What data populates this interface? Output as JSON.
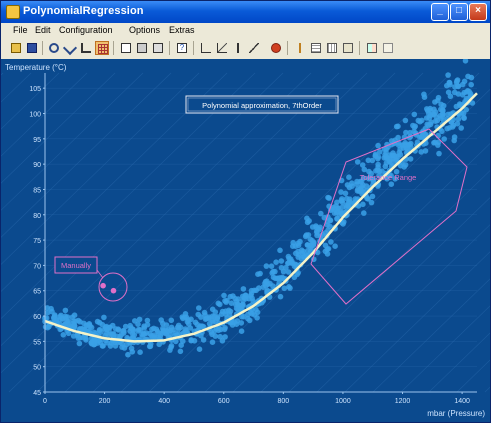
{
  "window": {
    "title": "PolynomialRegression"
  },
  "menu": [
    "File",
    "Edit",
    "Configuration",
    "Options",
    "Extras"
  ],
  "toolbar_icons": [
    "open-icon",
    "save-icon",
    "zoom-icon",
    "zoom-out-icon",
    "pan-icon",
    "grid-icon",
    "copy-icon",
    "print-icon",
    "export-icon",
    "help-icon",
    "axis-icon",
    "scale-icon",
    "marker-icon",
    "line-icon",
    "color-icon",
    "sep",
    "fit-icon",
    "table-icon",
    "data-icon",
    "settings-icon",
    "layout-icon"
  ],
  "chart_data": {
    "type": "scatter",
    "title": "Polynomial approximation, 7thOrder",
    "xlabel": "mbar (Pressure)",
    "ylabel": "Temperature (°C)",
    "xlim": [
      0,
      1450
    ],
    "ylim": [
      45,
      108
    ],
    "xticks": [
      0,
      200,
      400,
      600,
      800,
      1000,
      1200,
      1400
    ],
    "yticks": [
      45,
      50,
      55,
      60,
      65,
      70,
      75,
      80,
      85,
      90,
      95,
      100,
      105
    ],
    "annotations": [
      "Tolerance Range",
      "Manually"
    ],
    "fit_curve": {
      "x": [
        0,
        100,
        200,
        300,
        400,
        500,
        600,
        700,
        800,
        900,
        1000,
        1100,
        1200,
        1300,
        1400,
        1450
      ],
      "y": [
        59,
        57,
        55.6,
        55,
        55.2,
        56.5,
        58.7,
        62,
        66.5,
        72.5,
        79.5,
        85.5,
        91,
        96,
        101,
        104
      ]
    },
    "manual_points": {
      "x": [
        195,
        230
      ],
      "y": [
        66,
        65
      ]
    },
    "colors": {
      "background": "#0b4a8e",
      "points": "#3aa0e6",
      "curve": "#f5f3c8",
      "annotation": "#e070c8"
    }
  }
}
